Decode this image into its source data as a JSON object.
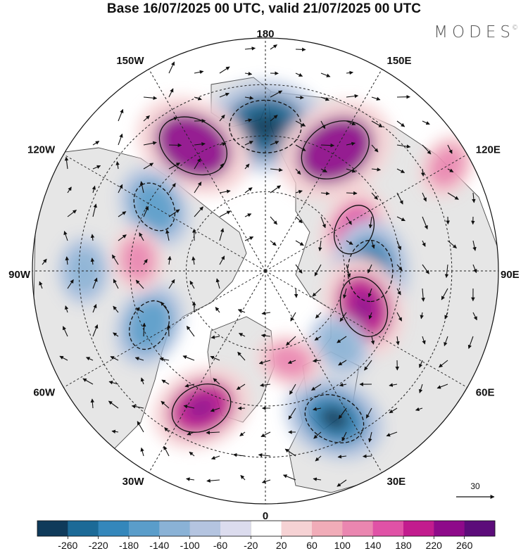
{
  "title": "Base 16/07/2025 00 UTC, valid 21/07/2025 00 UTC",
  "brand": "MODES",
  "brand_mark": "©",
  "map": {
    "projection": "north-polar-stereographic",
    "longitude_labels": [
      "180",
      "150E",
      "120E",
      "90E",
      "60E",
      "30E",
      "0",
      "30W",
      "60W",
      "90W",
      "120W",
      "150W"
    ],
    "wind_reference": {
      "value": "30"
    },
    "colors": {
      "land": "#e6e6e6",
      "ocean": "#ffffff",
      "coast": "#4a4a4a",
      "grid": "#222222",
      "arrow": "#111111"
    }
  },
  "colorbar": {
    "labels": [
      "-260",
      "-220",
      "-180",
      "-140",
      "-100",
      "-60",
      "-20",
      "20",
      "60",
      "100",
      "140",
      "180",
      "220",
      "260"
    ],
    "colors": [
      "#0f3a5a",
      "#1c6a97",
      "#3487bb",
      "#5a9dca",
      "#8ab2d6",
      "#b4c4e0",
      "#dcdcee",
      "#ffffff",
      "#f6d2d4",
      "#f1acb8",
      "#ea86b0",
      "#e052a6",
      "#c21c8e",
      "#8e0a8a",
      "#5c0c7a"
    ]
  },
  "anomalies": [
    {
      "sign": "neg",
      "lon": 180,
      "r": 0.62,
      "level": 4
    },
    {
      "sign": "pos",
      "lon": 150,
      "r": 0.6,
      "level": 4
    },
    {
      "sign": "pos",
      "lon": -150,
      "r": 0.62,
      "level": 4
    },
    {
      "sign": "neg",
      "lon": -120,
      "r": 0.55,
      "level": 2
    },
    {
      "sign": "pos",
      "lon": 115,
      "r": 0.42,
      "level": 2
    },
    {
      "sign": "neg",
      "lon": 90,
      "r": 0.45,
      "level": 3
    },
    {
      "sign": "pos",
      "lon": 70,
      "r": 0.45,
      "level": 3
    },
    {
      "sign": "neg",
      "lon": 25,
      "r": 0.7,
      "level": 3
    },
    {
      "sign": "pos",
      "lon": -25,
      "r": 0.65,
      "level": 3
    },
    {
      "sign": "neg",
      "lon": -65,
      "r": 0.55,
      "level": 2
    },
    {
      "sign": "pos",
      "lon": -95,
      "r": 0.55,
      "level": 1
    },
    {
      "sign": "neg",
      "lon": 45,
      "r": 0.45,
      "level": 1
    },
    {
      "sign": "pos",
      "lon": 15,
      "r": 0.4,
      "level": 1
    },
    {
      "sign": "neg",
      "lon": -90,
      "r": 0.78,
      "level": 1
    },
    {
      "sign": "pos",
      "lon": 120,
      "r": 0.9,
      "level": 1
    }
  ]
}
